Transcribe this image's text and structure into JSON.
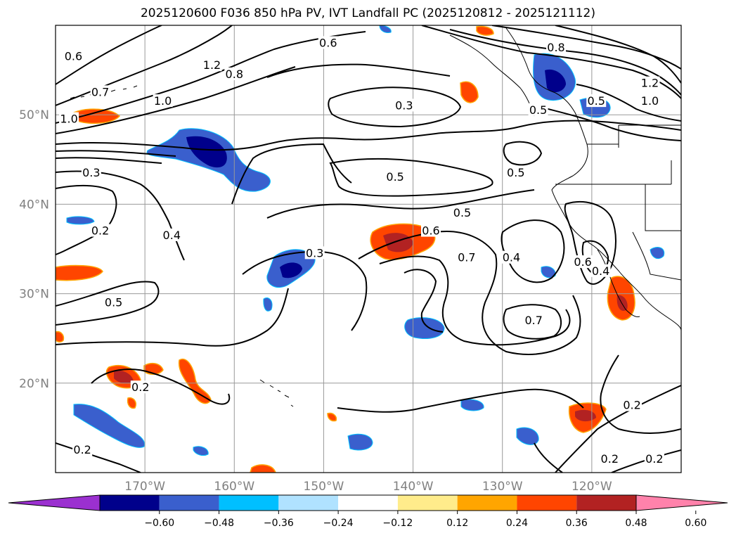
{
  "title": "2025120600 F036 850 hPa PV, IVT Landfall PC (2025120812 - 2025121112)",
  "map": {
    "lon_range": [
      -180,
      -110
    ],
    "lat_range": [
      10,
      60
    ],
    "lat_ticks": [
      {
        "value": 50,
        "label": "50°N"
      },
      {
        "value": 40,
        "label": "40°N"
      },
      {
        "value": 30,
        "label": "30°N"
      },
      {
        "value": 20,
        "label": "20°N"
      }
    ],
    "lon_ticks": [
      {
        "value": -170,
        "label": "170°W"
      },
      {
        "value": -160,
        "label": "160°W"
      },
      {
        "value": -150,
        "label": "150°W"
      },
      {
        "value": -140,
        "label": "140°W"
      },
      {
        "value": -130,
        "label": "130°W"
      },
      {
        "value": -120,
        "label": "120°W"
      }
    ],
    "gridlines": true,
    "contour_labels": [
      {
        "text": "0.6",
        "lon": -178.0,
        "lat": 56.5
      },
      {
        "text": "0.7",
        "lon": -175.0,
        "lat": 52.5
      },
      {
        "text": "1.0",
        "lon": -178.5,
        "lat": 49.5
      },
      {
        "text": "1.0",
        "lon": -168.0,
        "lat": 51.5
      },
      {
        "text": "1.2",
        "lon": -162.5,
        "lat": 55.5
      },
      {
        "text": "0.8",
        "lon": -160.0,
        "lat": 54.5
      },
      {
        "text": "0.6",
        "lon": -149.5,
        "lat": 58.0
      },
      {
        "text": "0.3",
        "lon": -176.0,
        "lat": 43.5
      },
      {
        "text": "0.3",
        "lon": -141.0,
        "lat": 51.0
      },
      {
        "text": "0.5",
        "lon": -142.0,
        "lat": 43.0
      },
      {
        "text": "0.5",
        "lon": -128.5,
        "lat": 43.5
      },
      {
        "text": "0.5",
        "lon": -126.0,
        "lat": 50.5
      },
      {
        "text": "0.8",
        "lon": -124.0,
        "lat": 57.5
      },
      {
        "text": "0.5",
        "lon": -119.5,
        "lat": 51.5
      },
      {
        "text": "1.2",
        "lon": -113.5,
        "lat": 53.5
      },
      {
        "text": "1.0",
        "lon": -113.5,
        "lat": 51.5
      },
      {
        "text": "0.2",
        "lon": -175.0,
        "lat": 37.0
      },
      {
        "text": "0.4",
        "lon": -167.0,
        "lat": 36.5
      },
      {
        "text": "0.5",
        "lon": -173.5,
        "lat": 29.0
      },
      {
        "text": "0.3",
        "lon": -151.0,
        "lat": 34.5
      },
      {
        "text": "0.5",
        "lon": -134.5,
        "lat": 39.0
      },
      {
        "text": "0.6",
        "lon": -138.0,
        "lat": 37.0
      },
      {
        "text": "0.7",
        "lon": -134.0,
        "lat": 34.0
      },
      {
        "text": "0.4",
        "lon": -129.0,
        "lat": 34.0
      },
      {
        "text": "0.6",
        "lon": -121.0,
        "lat": 33.5
      },
      {
        "text": "0.4",
        "lon": -119.0,
        "lat": 32.5
      },
      {
        "text": "0.7",
        "lon": -126.5,
        "lat": 27.0
      },
      {
        "text": "0.2",
        "lon": -170.5,
        "lat": 19.5
      },
      {
        "text": "0.2",
        "lon": -115.5,
        "lat": 17.5
      },
      {
        "text": "0.2",
        "lon": -177.0,
        "lat": 12.5
      },
      {
        "text": "0.2",
        "lon": -118.0,
        "lat": 11.5
      },
      {
        "text": "0.2",
        "lon": -113.0,
        "lat": 11.5
      }
    ]
  },
  "colorbar": {
    "colors": [
      "#9b30d0",
      "#00008b",
      "#3a5fcd",
      "#00bfff",
      "#b0e2ff",
      "#ffffff",
      "#ffec8b",
      "#ffa500",
      "#ff4500",
      "#b22222",
      "#ff82ab"
    ],
    "tick_values": [
      "−0.60",
      "−0.48",
      "−0.36",
      "−0.24",
      "−0.12",
      "0.12",
      "0.24",
      "0.36",
      "0.48",
      "0.60"
    ]
  }
}
